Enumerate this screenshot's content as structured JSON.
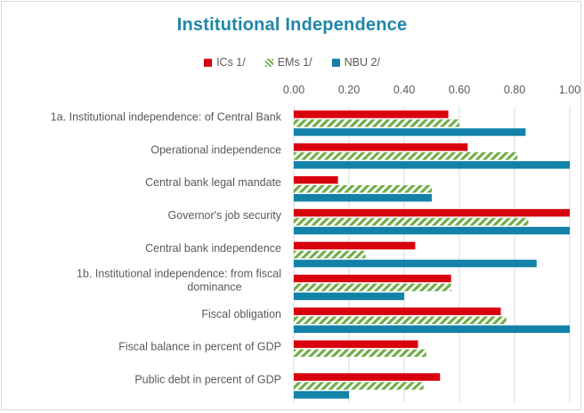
{
  "chart_data": {
    "type": "bar",
    "orientation": "horizontal",
    "title": "Institutional Independence",
    "legend_position": "top",
    "grid": true,
    "xlim": [
      0,
      1
    ],
    "ticks": [
      "0.00",
      "0.20",
      "0.40",
      "0.60",
      "0.80",
      "1.00"
    ],
    "categories": [
      [
        "1a. Institutional independence: of Central Bank"
      ],
      [
        "Operational independence"
      ],
      [
        "Central bank legal mandate"
      ],
      [
        "Governor's job security"
      ],
      [
        "Central bank independence"
      ],
      [
        "1b. Institutional independence:  from fiscal",
        "dominance"
      ],
      [
        "Fiscal obligation"
      ],
      [
        "Fiscal balance in percent of GDP"
      ],
      [
        "Public debt in percent of GDP"
      ]
    ],
    "series": [
      {
        "name": "ICs 1/",
        "color": "#d9000d",
        "pattern": "solid",
        "values": [
          0.56,
          0.63,
          0.16,
          1.0,
          0.44,
          0.57,
          0.75,
          0.45,
          0.53
        ]
      },
      {
        "name": "EMs 1/",
        "color": "#70ad47",
        "pattern": "hatched",
        "values": [
          0.6,
          0.81,
          0.5,
          0.85,
          0.26,
          0.57,
          0.77,
          0.48,
          0.47
        ]
      },
      {
        "name": "NBU 2/",
        "color": "#1382a8",
        "pattern": "solid",
        "values": [
          0.84,
          1.0,
          0.5,
          1.0,
          0.88,
          0.4,
          1.0,
          null,
          0.2
        ]
      }
    ]
  }
}
